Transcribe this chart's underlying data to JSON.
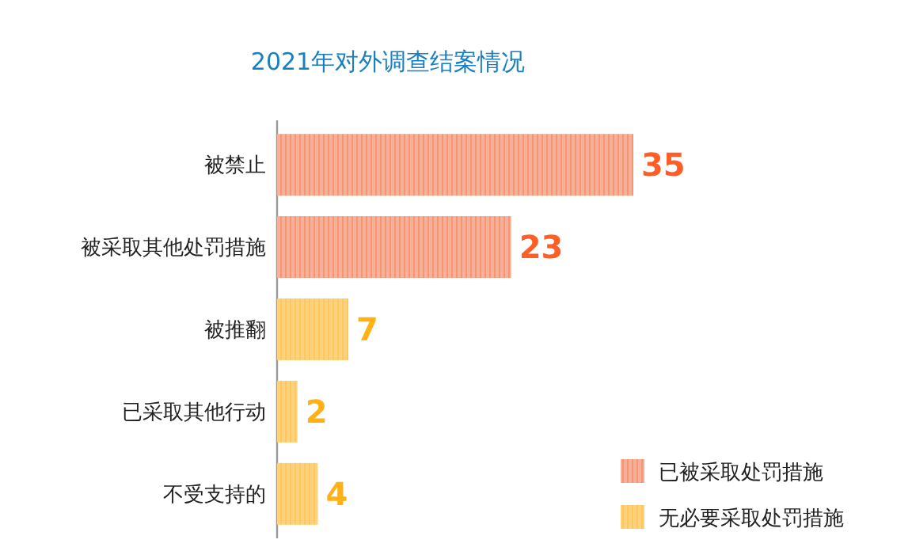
{
  "chart_data": {
    "type": "bar",
    "orientation": "horizontal",
    "title": "2021年对外调查结案情况",
    "categories": [
      "被禁止",
      "被采取其他处罚措施",
      "被推翻",
      "已采取其他行动",
      "不受支持的"
    ],
    "series": [
      {
        "name": "已被采取处罚措施",
        "color": "#f4b098",
        "values": [
          35,
          23,
          null,
          null,
          null
        ]
      },
      {
        "name": "无必要采取处罚措施",
        "color": "#fcd27e",
        "values": [
          null,
          null,
          7,
          2,
          4
        ]
      }
    ],
    "data_labels": true,
    "legend": "bottom right"
  }
}
